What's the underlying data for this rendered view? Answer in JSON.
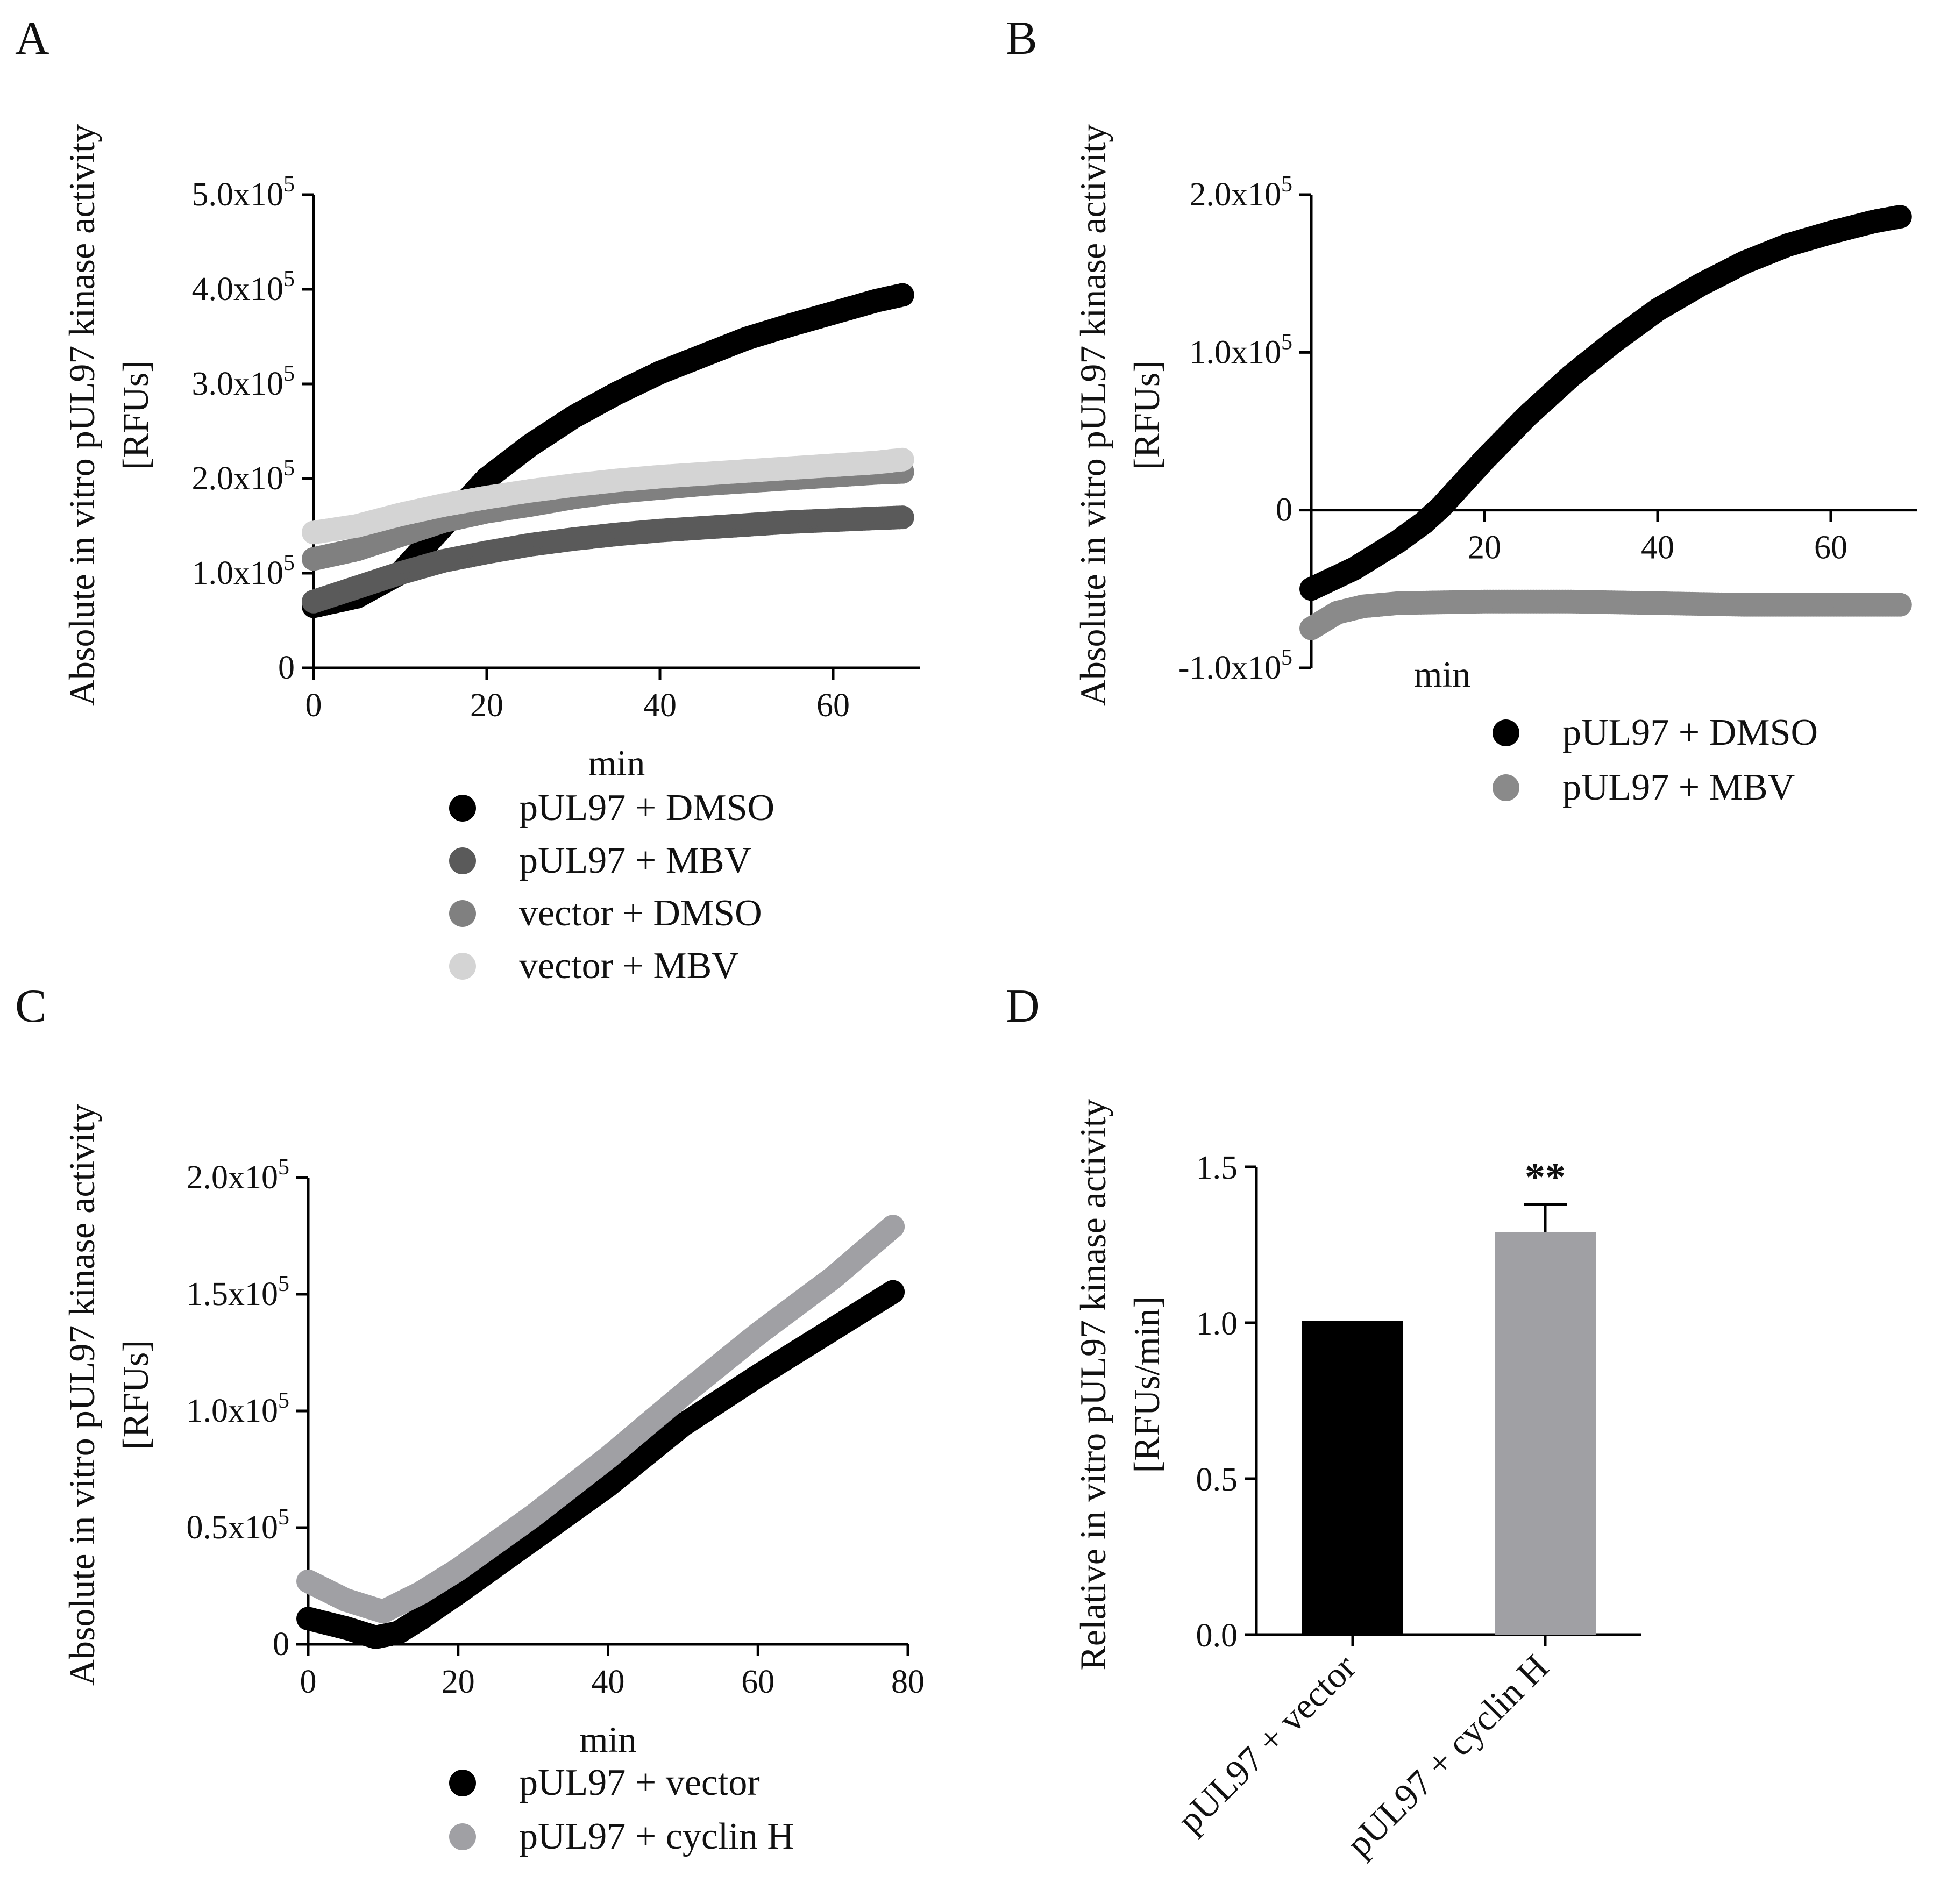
{
  "chart_data": [
    {
      "panel": "A",
      "type": "scatter",
      "ylabel_line1": "Absolute in vitro pUL97 kinase activity",
      "ylabel_line2": "[RFUs]",
      "xlabel": "min",
      "xlim": [
        0,
        70
      ],
      "ylim": [
        0,
        500000
      ],
      "xticks": [
        0,
        20,
        40,
        60
      ],
      "xtick_labels": [
        "0",
        "20",
        "40",
        "60"
      ],
      "yticks": [
        0,
        100000,
        200000,
        300000,
        400000,
        500000
      ],
      "ytick_mantissas": [
        "0",
        "1.0x10",
        "2.0x10",
        "3.0x10",
        "4.0x10",
        "5.0x10"
      ],
      "ytick_exponent": "5",
      "legend_position": "bottom",
      "series": [
        {
          "name": "pUL97 + DMSO",
          "color": "#000000",
          "x": [
            0,
            5,
            10,
            15,
            20,
            25,
            30,
            35,
            40,
            45,
            50,
            55,
            60,
            65,
            68
          ],
          "y": [
            65000,
            75000,
            100000,
            150000,
            200000,
            235000,
            265000,
            290000,
            312000,
            330000,
            348000,
            362000,
            375000,
            388000,
            394000
          ]
        },
        {
          "name": "pUL97 + MBV",
          "color": "#5a5a5a",
          "x": [
            0,
            5,
            10,
            15,
            20,
            25,
            30,
            35,
            40,
            45,
            50,
            55,
            60,
            65,
            68
          ],
          "y": [
            70000,
            85000,
            100000,
            113000,
            122000,
            130000,
            136000,
            141000,
            145000,
            148000,
            151000,
            154000,
            156000,
            158000,
            159000
          ]
        },
        {
          "name": "vector + DMSO",
          "color": "#808080",
          "x": [
            0,
            5,
            10,
            15,
            20,
            25,
            30,
            35,
            40,
            45,
            50,
            55,
            60,
            65,
            68
          ],
          "y": [
            115000,
            125000,
            140000,
            155000,
            165000,
            172000,
            180000,
            186000,
            190000,
            194000,
            197000,
            200000,
            203000,
            206000,
            207000
          ]
        },
        {
          "name": "vector + MBV",
          "color": "#d4d4d4",
          "x": [
            0,
            5,
            10,
            15,
            20,
            25,
            30,
            35,
            40,
            45,
            50,
            55,
            60,
            65,
            68
          ],
          "y": [
            143000,
            150000,
            162000,
            172000,
            180000,
            187000,
            193000,
            198000,
            202000,
            205000,
            208000,
            211000,
            214000,
            217000,
            220000
          ]
        }
      ]
    },
    {
      "panel": "B",
      "type": "scatter",
      "ylabel_line1": "Absolute in vitro pUL97 kinase activity",
      "ylabel_line2": "[RFUs]",
      "xlabel": "min",
      "xlim": [
        0,
        70
      ],
      "ylim": [
        -100000,
        200000
      ],
      "xticks": [
        20,
        40,
        60
      ],
      "xtick_labels": [
        "20",
        "40",
        "60"
      ],
      "yticks": [
        -100000,
        0,
        100000,
        200000
      ],
      "ytick_mantissas": [
        "-1.0x10",
        "0",
        "1.0x10",
        "2.0x10"
      ],
      "ytick_exponent": "5",
      "legend_position": "bottom",
      "series": [
        {
          "name": "pUL97 + DMSO",
          "color": "#000000",
          "x": [
            0,
            5,
            10,
            13,
            15,
            20,
            25,
            30,
            35,
            40,
            45,
            50,
            55,
            60,
            65,
            68
          ],
          "y": [
            -50000,
            -37000,
            -20000,
            -8000,
            2000,
            32000,
            60000,
            85000,
            107000,
            127000,
            143000,
            157000,
            168000,
            176000,
            183000,
            186000
          ]
        },
        {
          "name": "pUL97 + MBV",
          "color": "#8a8a8a",
          "x": [
            0,
            3,
            6,
            10,
            20,
            30,
            40,
            50,
            60,
            68
          ],
          "y": [
            -75000,
            -65000,
            -61000,
            -59000,
            -58000,
            -58000,
            -59000,
            -60000,
            -60000,
            -60000
          ]
        }
      ]
    },
    {
      "panel": "C",
      "type": "scatter",
      "ylabel_line1": "Absolute in vitro pUL97 kinase activity",
      "ylabel_line2": "[RFUs]",
      "xlabel": "min",
      "xlim": [
        0,
        80
      ],
      "ylim": [
        0,
        200000
      ],
      "xticks": [
        0,
        20,
        40,
        60,
        80
      ],
      "xtick_labels": [
        "0",
        "20",
        "40",
        "60",
        "80"
      ],
      "yticks": [
        0,
        50000,
        100000,
        150000,
        200000
      ],
      "ytick_mantissas": [
        "0",
        "0.5x10",
        "1.0x10",
        "1.5x10",
        "2.0x10"
      ],
      "ytick_exponent": "5",
      "legend_position": "bottom",
      "series": [
        {
          "name": "pUL97 + vector",
          "color": "#000000",
          "x": [
            0,
            5,
            9,
            12,
            15,
            20,
            30,
            40,
            50,
            60,
            70,
            78
          ],
          "y": [
            11000,
            7000,
            3000,
            5000,
            11000,
            22000,
            45000,
            68000,
            94000,
            115000,
            135000,
            151000
          ]
        },
        {
          "name": "pUL97 + cyclin H",
          "color": "#a0a0a4",
          "x": [
            0,
            5,
            10,
            15,
            20,
            30,
            40,
            50,
            60,
            70,
            78
          ],
          "y": [
            27000,
            19000,
            14000,
            22000,
            32000,
            55000,
            80000,
            107000,
            133000,
            157000,
            179000
          ]
        }
      ]
    },
    {
      "panel": "D",
      "type": "bar",
      "ylabel_line1": "Relative in vitro pUL97 kinase activity",
      "ylabel_line2": "[RFUs/min]",
      "categories": [
        "pUL97 + vector",
        "pUL97 + cyclin H"
      ],
      "values": [
        1.0,
        1.29
      ],
      "errors": [
        0.0,
        0.09
      ],
      "colors": [
        "#000000",
        "#a0a0a4"
      ],
      "ylim": [
        0,
        1.5
      ],
      "yticks": [
        0.0,
        0.5,
        1.0,
        1.5
      ],
      "ytick_labels": [
        "0.0",
        "0.5",
        "1.0",
        "1.5"
      ],
      "significance": [
        "",
        "**"
      ]
    }
  ]
}
